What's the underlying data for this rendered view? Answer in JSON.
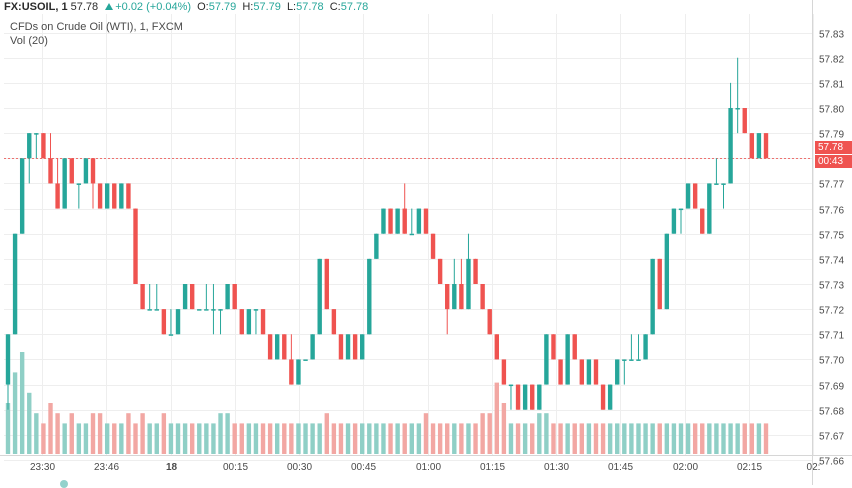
{
  "header": {
    "symbol": "FX:USOIL, 1",
    "last": "57.78",
    "change": "+0.02 (+0.04%)",
    "o_label": "O:",
    "o_value": "57.79",
    "h_label": "H:",
    "h_value": "57.79",
    "l_label": "L:",
    "l_value": "57.78",
    "c_label": "C:",
    "c_value": "57.78"
  },
  "subtitle": "CFDs on Crude Oil (WTI), 1, FXCM",
  "volume_label": "Vol (20)",
  "tags": {
    "price": "57.78",
    "countdown": "00:43"
  },
  "colors": {
    "up": "#26a69a",
    "down": "#ef5350",
    "vol_up": "#8fcfc6",
    "vol_down": "#f2a7a3",
    "grid": "#eeeeee",
    "axis_text": "#4a4a4a"
  },
  "chart_data": {
    "type": "candlestick",
    "title": "CFDs on Crude Oil (WTI), 1, FXCM",
    "ylim": [
      57.66,
      57.835
    ],
    "y_ticks": [
      "57.83",
      "57.82",
      "57.81",
      "57.80",
      "57.79",
      "57.78",
      "57.77",
      "57.76",
      "57.75",
      "57.74",
      "57.73",
      "57.72",
      "57.71",
      "57.70",
      "57.69",
      "57.68",
      "57.67",
      "57.66"
    ],
    "x_ticks": [
      "23:30",
      "23:46",
      "18",
      "00:15",
      "00:30",
      "00:45",
      "01:00",
      "01:15",
      "01:30",
      "01:45",
      "02:00",
      "02:15",
      "02:"
    ],
    "last_price": 57.78,
    "volume_max": 10,
    "candles": [
      [
        57.69,
        57.71,
        57.68,
        57.71,
        5
      ],
      [
        57.71,
        57.75,
        57.71,
        57.75,
        8
      ],
      [
        57.75,
        57.78,
        57.75,
        57.78,
        10
      ],
      [
        57.78,
        57.79,
        57.77,
        57.79,
        6
      ],
      [
        57.79,
        57.79,
        57.78,
        57.79,
        4
      ],
      [
        57.79,
        57.79,
        57.78,
        57.78,
        3
      ],
      [
        57.78,
        57.79,
        57.77,
        57.77,
        5
      ],
      [
        57.77,
        57.78,
        57.76,
        57.76,
        4
      ],
      [
        57.76,
        57.78,
        57.76,
        57.78,
        3
      ],
      [
        57.78,
        57.78,
        57.77,
        57.77,
        4
      ],
      [
        57.77,
        57.77,
        57.76,
        57.77,
        3
      ],
      [
        57.77,
        57.78,
        57.77,
        57.78,
        3
      ],
      [
        57.78,
        57.78,
        57.76,
        57.77,
        4
      ],
      [
        57.77,
        57.77,
        57.76,
        57.76,
        4
      ],
      [
        57.76,
        57.77,
        57.76,
        57.77,
        3
      ],
      [
        57.77,
        57.77,
        57.76,
        57.76,
        3
      ],
      [
        57.76,
        57.77,
        57.76,
        57.77,
        3
      ],
      [
        57.77,
        57.77,
        57.76,
        57.76,
        4
      ],
      [
        57.76,
        57.76,
        57.73,
        57.73,
        3
      ],
      [
        57.73,
        57.73,
        57.72,
        57.72,
        4
      ],
      [
        57.72,
        57.73,
        57.72,
        57.72,
        3
      ],
      [
        57.72,
        57.73,
        57.72,
        57.72,
        3
      ],
      [
        57.72,
        57.72,
        57.71,
        57.71,
        4
      ],
      [
        57.71,
        57.72,
        57.71,
        57.71,
        3
      ],
      [
        57.71,
        57.72,
        57.71,
        57.72,
        3
      ],
      [
        57.72,
        57.73,
        57.72,
        57.73,
        3
      ],
      [
        57.73,
        57.73,
        57.72,
        57.72,
        3
      ],
      [
        57.72,
        57.72,
        57.72,
        57.72,
        3
      ],
      [
        57.72,
        57.73,
        57.72,
        57.72,
        3
      ],
      [
        57.72,
        57.73,
        57.71,
        57.72,
        3
      ],
      [
        57.72,
        57.72,
        57.71,
        57.72,
        4
      ],
      [
        57.72,
        57.73,
        57.72,
        57.73,
        4
      ],
      [
        57.73,
        57.73,
        57.72,
        57.72,
        3
      ],
      [
        57.72,
        57.72,
        57.71,
        57.71,
        3
      ],
      [
        57.71,
        57.72,
        57.71,
        57.72,
        3
      ],
      [
        57.72,
        57.72,
        57.71,
        57.72,
        3
      ],
      [
        57.72,
        57.72,
        57.71,
        57.71,
        3
      ],
      [
        57.71,
        57.71,
        57.7,
        57.7,
        3
      ],
      [
        57.7,
        57.71,
        57.7,
        57.71,
        3
      ],
      [
        57.71,
        57.71,
        57.7,
        57.7,
        3
      ],
      [
        57.7,
        57.71,
        57.69,
        57.69,
        3
      ],
      [
        57.69,
        57.7,
        57.69,
        57.7,
        3
      ],
      [
        57.7,
        57.7,
        57.7,
        57.7,
        3
      ],
      [
        57.7,
        57.71,
        57.7,
        57.71,
        3
      ],
      [
        57.71,
        57.74,
        57.71,
        57.74,
        3
      ],
      [
        57.74,
        57.74,
        57.72,
        57.72,
        4
      ],
      [
        57.72,
        57.72,
        57.71,
        57.71,
        3
      ],
      [
        57.71,
        57.71,
        57.7,
        57.7,
        3
      ],
      [
        57.7,
        57.71,
        57.7,
        57.71,
        3
      ],
      [
        57.71,
        57.71,
        57.7,
        57.7,
        3
      ],
      [
        57.7,
        57.71,
        57.7,
        57.71,
        3
      ],
      [
        57.71,
        57.74,
        57.71,
        57.74,
        3
      ],
      [
        57.74,
        57.75,
        57.74,
        57.75,
        3
      ],
      [
        57.75,
        57.76,
        57.75,
        57.76,
        3
      ],
      [
        57.76,
        57.76,
        57.75,
        57.75,
        3
      ],
      [
        57.75,
        57.76,
        57.75,
        57.76,
        3
      ],
      [
        57.76,
        57.77,
        57.75,
        57.75,
        3
      ],
      [
        57.75,
        57.76,
        57.75,
        57.75,
        3
      ],
      [
        57.75,
        57.76,
        57.75,
        57.76,
        3
      ],
      [
        57.76,
        57.76,
        57.75,
        57.75,
        4
      ],
      [
        57.75,
        57.75,
        57.74,
        57.74,
        3
      ],
      [
        57.74,
        57.74,
        57.73,
        57.73,
        3
      ],
      [
        57.73,
        57.73,
        57.71,
        57.72,
        3
      ],
      [
        57.72,
        57.74,
        57.72,
        57.73,
        3
      ],
      [
        57.73,
        57.74,
        57.72,
        57.72,
        3
      ],
      [
        57.72,
        57.75,
        57.72,
        57.74,
        3
      ],
      [
        57.74,
        57.74,
        57.73,
        57.73,
        3
      ],
      [
        57.73,
        57.73,
        57.72,
        57.72,
        4
      ],
      [
        57.72,
        57.72,
        57.71,
        57.71,
        4
      ],
      [
        57.71,
        57.71,
        57.7,
        57.7,
        7
      ],
      [
        57.7,
        57.7,
        57.69,
        57.69,
        5
      ],
      [
        57.69,
        57.69,
        57.68,
        57.69,
        3
      ],
      [
        57.69,
        57.69,
        57.68,
        57.68,
        3
      ],
      [
        57.68,
        57.69,
        57.68,
        57.69,
        3
      ],
      [
        57.69,
        57.69,
        57.68,
        57.68,
        3
      ],
      [
        57.68,
        57.69,
        57.68,
        57.69,
        4
      ],
      [
        57.69,
        57.71,
        57.69,
        57.71,
        4
      ],
      [
        57.71,
        57.71,
        57.7,
        57.7,
        3
      ],
      [
        57.7,
        57.7,
        57.69,
        57.69,
        3
      ],
      [
        57.69,
        57.71,
        57.69,
        57.71,
        3
      ],
      [
        57.71,
        57.71,
        57.7,
        57.7,
        3
      ],
      [
        57.7,
        57.7,
        57.69,
        57.69,
        3
      ],
      [
        57.69,
        57.7,
        57.69,
        57.7,
        3
      ],
      [
        57.7,
        57.7,
        57.69,
        57.69,
        3
      ],
      [
        57.69,
        57.69,
        57.68,
        57.68,
        3
      ],
      [
        57.68,
        57.69,
        57.68,
        57.69,
        3
      ],
      [
        57.69,
        57.7,
        57.69,
        57.7,
        3
      ],
      [
        57.7,
        57.7,
        57.69,
        57.7,
        3
      ],
      [
        57.7,
        57.71,
        57.7,
        57.7,
        3
      ],
      [
        57.7,
        57.71,
        57.7,
        57.7,
        3
      ],
      [
        57.7,
        57.71,
        57.7,
        57.71,
        3
      ],
      [
        57.71,
        57.74,
        57.71,
        57.74,
        3
      ],
      [
        57.74,
        57.74,
        57.72,
        57.72,
        3
      ],
      [
        57.72,
        57.75,
        57.72,
        57.75,
        3
      ],
      [
        57.75,
        57.76,
        57.75,
        57.76,
        3
      ],
      [
        57.76,
        57.76,
        57.75,
        57.76,
        3
      ],
      [
        57.76,
        57.77,
        57.76,
        57.77,
        3
      ],
      [
        57.77,
        57.77,
        57.76,
        57.76,
        3
      ],
      [
        57.76,
        57.76,
        57.75,
        57.75,
        3
      ],
      [
        57.75,
        57.77,
        57.75,
        57.77,
        3
      ],
      [
        57.77,
        57.78,
        57.77,
        57.77,
        3
      ],
      [
        57.77,
        57.77,
        57.76,
        57.77,
        3
      ],
      [
        57.77,
        57.81,
        57.77,
        57.8,
        3
      ],
      [
        57.8,
        57.82,
        57.79,
        57.8,
        3
      ],
      [
        57.8,
        57.8,
        57.79,
        57.79,
        3
      ],
      [
        57.79,
        57.79,
        57.78,
        57.78,
        3
      ],
      [
        57.78,
        57.79,
        57.78,
        57.79,
        3
      ],
      [
        57.79,
        57.79,
        57.78,
        57.78,
        3
      ]
    ]
  }
}
